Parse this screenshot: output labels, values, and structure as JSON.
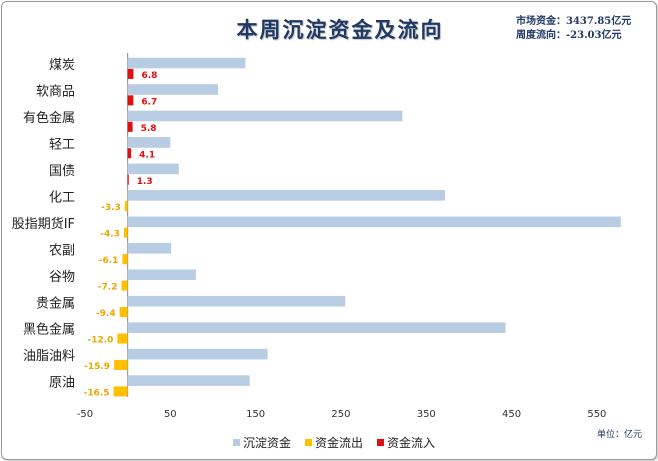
{
  "chart_data": {
    "type": "bar",
    "orientation": "horizontal",
    "title": "本周沉淀资金及流向",
    "categories": [
      "煤炭",
      "软商品",
      "有色金属",
      "轻工",
      "国债",
      "化工",
      "股指期货IF",
      "农副",
      "谷物",
      "贵金属",
      "黑色金属",
      "油脂油料",
      "原油"
    ],
    "series": [
      {
        "name": "沉淀资金",
        "color": "#b8cce4",
        "values": [
          138,
          106,
          322,
          50,
          60,
          372,
          578,
          51,
          80,
          255,
          443,
          164,
          143
        ]
      },
      {
        "name": "资金流出",
        "color": "#ffc000",
        "values": [
          null,
          null,
          null,
          null,
          null,
          -3.3,
          -4.3,
          -6.1,
          -7.2,
          -9.4,
          -12.0,
          -15.9,
          -16.5
        ]
      },
      {
        "name": "资金流入",
        "color": "#e01010",
        "values": [
          6.8,
          6.7,
          5.8,
          4.1,
          1.3,
          null,
          null,
          null,
          null,
          null,
          null,
          null,
          null
        ]
      }
    ],
    "flow_labels": [
      "6.8",
      "6.7",
      "5.8",
      "4.1",
      "1.3",
      "-3.3",
      "-4.3",
      "-6.1",
      "-7.2",
      "-9.4",
      "-12.0",
      "-15.9",
      "-16.5"
    ],
    "xlim": [
      -50,
      590
    ],
    "xticks": [
      -50,
      50,
      150,
      250,
      350,
      450,
      550
    ],
    "grid": false,
    "legend_position": "bottom"
  },
  "info": {
    "market_funds": "市场资金：3437.85亿元",
    "weekly_flow": "周度流向：-23.03亿元"
  },
  "unit_label": "单位：亿元"
}
